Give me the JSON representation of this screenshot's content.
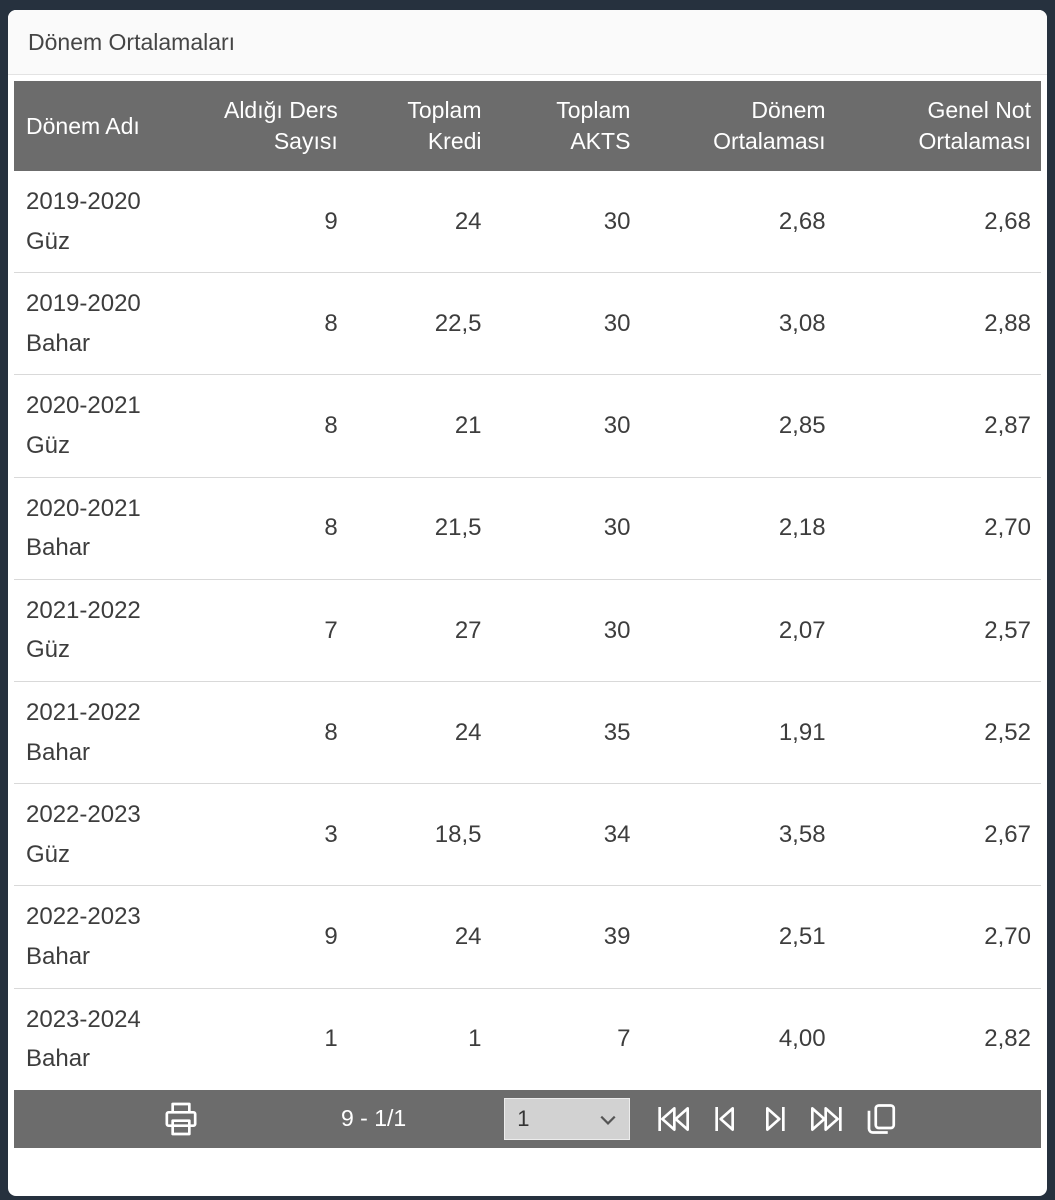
{
  "panel": {
    "title": "Dönem Ortalamaları"
  },
  "table": {
    "columns": [
      "Dönem Adı",
      "Aldığı Ders Sayısı",
      "Toplam Kredi",
      "Toplam AKTS",
      "Dönem Ortalaması",
      "Genel Not Ortalaması"
    ],
    "rows": [
      [
        "2019-2020 Güz",
        "9",
        "24",
        "30",
        "2,68",
        "2,68"
      ],
      [
        "2019-2020 Bahar",
        "8",
        "22,5",
        "30",
        "3,08",
        "2,88"
      ],
      [
        "2020-2021 Güz",
        "8",
        "21",
        "30",
        "2,85",
        "2,87"
      ],
      [
        "2020-2021 Bahar",
        "8",
        "21,5",
        "30",
        "2,18",
        "2,70"
      ],
      [
        "2021-2022 Güz",
        "7",
        "27",
        "30",
        "2,07",
        "2,57"
      ],
      [
        "2021-2022 Bahar",
        "8",
        "24",
        "35",
        "1,91",
        "2,52"
      ],
      [
        "2022-2023 Güz",
        "3",
        "18,5",
        "34",
        "3,58",
        "2,67"
      ],
      [
        "2022-2023 Bahar",
        "9",
        "24",
        "39",
        "2,51",
        "2,70"
      ],
      [
        "2023-2024 Bahar",
        "1",
        "1",
        "7",
        "4,00",
        "2,82"
      ]
    ]
  },
  "pager": {
    "summary": "9 - 1/1",
    "page_select_value": "1",
    "icons": [
      "printer-icon",
      "first-page-icon",
      "previous-page-icon",
      "next-page-icon",
      "last-page-icon",
      "copy-icon",
      "chevron-down-icon"
    ]
  },
  "colors": {
    "frame": "#26313e",
    "grid_header_bg": "#6c6c6c",
    "pager_bg": "#6c6c6c",
    "row_divider": "#d9d9d9",
    "select_bg": "#d2d2d2"
  }
}
